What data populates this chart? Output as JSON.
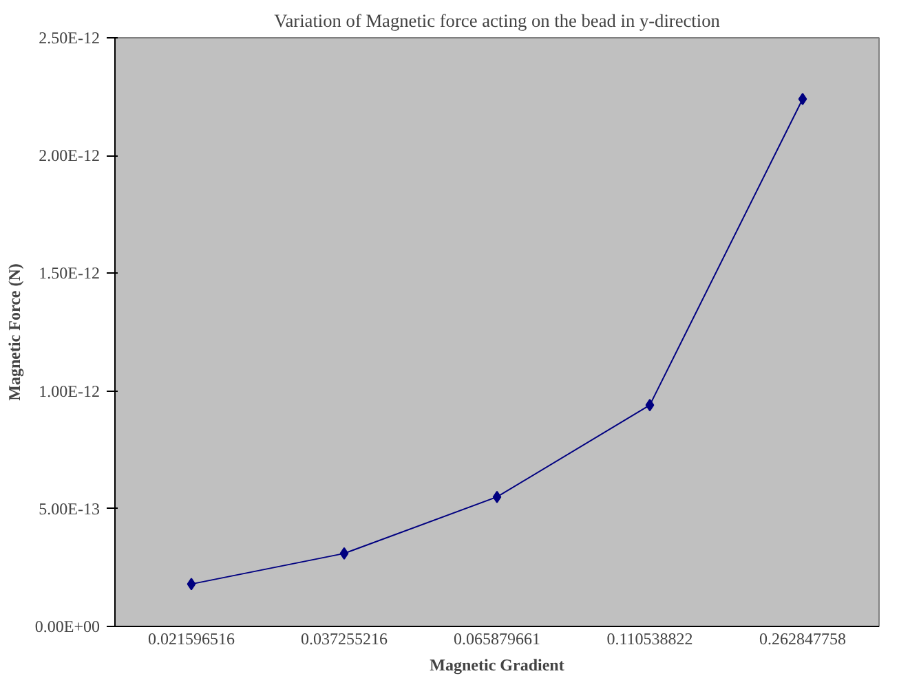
{
  "chart_data": {
    "type": "line",
    "title": "Variation of Magnetic force acting on the bead in y-direction",
    "xlabel": "Magnetic Gradient",
    "ylabel": "Magnetic Force (N)",
    "categories": [
      "0.021596516",
      "0.037255216",
      "0.065879661",
      "0.110538822",
      "0.262847758"
    ],
    "series": [
      {
        "color": "#000080",
        "values": [
          1.8e-13,
          3.1e-13,
          5.5e-13,
          9.4e-13,
          2.24e-12
        ]
      }
    ],
    "ylim": [
      0,
      2.5e-12
    ],
    "yticks": [
      {
        "value": 0,
        "label": "0.00E+00"
      },
      {
        "value": 5e-13,
        "label": "5.00E-13"
      },
      {
        "value": 1e-12,
        "label": "1.00E-12"
      },
      {
        "value": 1.5e-12,
        "label": "1.50E-12"
      },
      {
        "value": 2e-12,
        "label": "2.00E-12"
      },
      {
        "value": 2.5e-12,
        "label": "2.50E-12"
      }
    ],
    "grid": false,
    "marker": "diamond",
    "line_style": "solid"
  }
}
